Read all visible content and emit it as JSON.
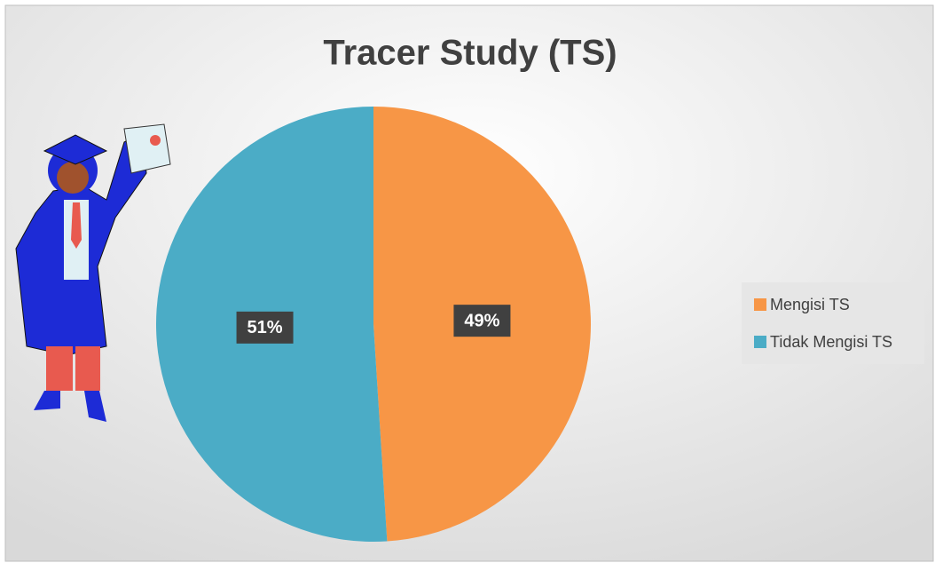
{
  "chart_data": {
    "type": "pie",
    "title": "Tracer Study (TS)",
    "categories": [
      "Mengisi TS",
      "Tidak Mengisi TS"
    ],
    "values": [
      49,
      51
    ],
    "value_labels": [
      "49%",
      "51%"
    ],
    "colors": [
      "#f79646",
      "#4bacc6"
    ],
    "legend": "right"
  }
}
